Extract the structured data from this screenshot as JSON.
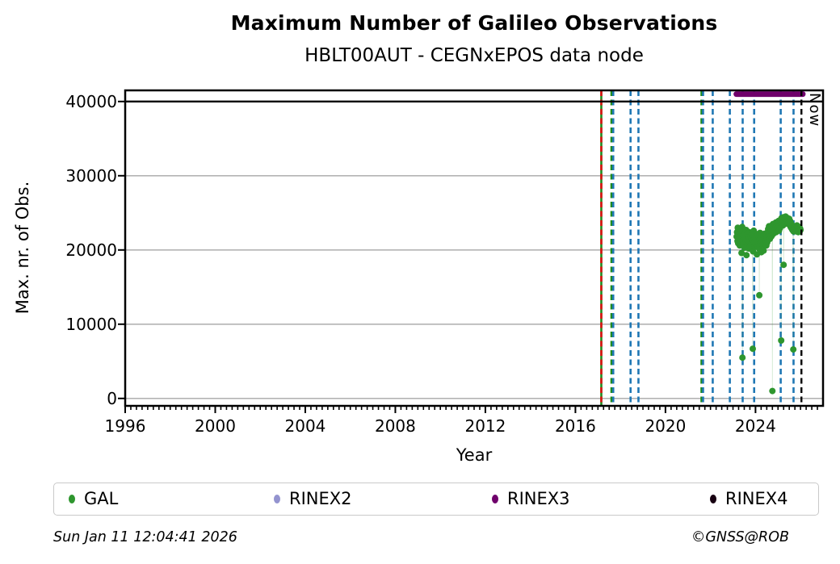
{
  "header": {
    "title": "Maximum Number of Galileo Observations",
    "subtitle": "HBLT00AUT - CEGNxEPOS data node"
  },
  "footer": {
    "timestamp": "Sun Jan 11 12:04:41 2026",
    "copyright": "©GNSS@ROB"
  },
  "chart_data": {
    "type": "scatter",
    "title": "Maximum Number of Galileo Observations",
    "subtitle": "HBLT00AUT - CEGNxEPOS data node",
    "xlabel": "Year",
    "ylabel": "Max. nr. of Obs.",
    "xlim": [
      1996,
      2027
    ],
    "ylim": [
      -1000,
      41500
    ],
    "xticks": [
      1996,
      2000,
      2004,
      2008,
      2012,
      2016,
      2020,
      2024
    ],
    "yticks": [
      0,
      10000,
      20000,
      30000,
      40000
    ],
    "x_minor_tick_step": 0.25,
    "grid": "horizontal-gray",
    "grid_color": "#b3b3b3",
    "legend_position": "bottom",
    "reference_line": {
      "value": 40000,
      "color": "#000000",
      "style": "solid"
    },
    "now_line": {
      "year": 2026.04,
      "label": "Now",
      "color": "#000000",
      "style": "dashed"
    },
    "event_lines": [
      {
        "year": 2017.15,
        "color": "#1e8c1e",
        "style": "solid"
      },
      {
        "year": 2017.15,
        "color": "#dd1111",
        "style": "dashed"
      },
      {
        "year": 2017.6,
        "color": "#1e8c1e",
        "style": "dashed"
      },
      {
        "year": 2017.68,
        "color": "#1f77b4",
        "style": "dashed"
      },
      {
        "year": 2018.45,
        "color": "#1f77b4",
        "style": "dashed"
      },
      {
        "year": 2018.8,
        "color": "#1f77b4",
        "style": "dashed"
      },
      {
        "year": 2021.6,
        "color": "#1e8c1e",
        "style": "dashed"
      },
      {
        "year": 2021.67,
        "color": "#1f77b4",
        "style": "dashed"
      },
      {
        "year": 2022.1,
        "color": "#1f77b4",
        "style": "dashed"
      },
      {
        "year": 2022.86,
        "color": "#1f77b4",
        "style": "dashed"
      },
      {
        "year": 2023.43,
        "color": "#1f77b4",
        "style": "dashed"
      },
      {
        "year": 2023.94,
        "color": "#1f77b4",
        "style": "dashed"
      },
      {
        "year": 2025.12,
        "color": "#1f77b4",
        "style": "dashed"
      },
      {
        "year": 2025.69,
        "color": "#1f77b4",
        "style": "dashed"
      }
    ],
    "series": [
      {
        "name": "GAL",
        "color": "#2e962e",
        "marker": "circle",
        "points": [
          [
            2023.16,
            21800
          ],
          [
            2023.18,
            22400
          ],
          [
            2023.2,
            21200
          ],
          [
            2023.21,
            23000
          ],
          [
            2023.23,
            20900
          ],
          [
            2023.25,
            22100
          ],
          [
            2023.26,
            21500
          ],
          [
            2023.28,
            22800
          ],
          [
            2023.3,
            20600
          ],
          [
            2023.31,
            21900
          ],
          [
            2023.33,
            22300
          ],
          [
            2023.35,
            21100
          ],
          [
            2023.36,
            22600
          ],
          [
            2023.38,
            19600
          ],
          [
            2023.4,
            21700
          ],
          [
            2023.41,
            23100
          ],
          [
            2023.42,
            5500
          ],
          [
            2023.43,
            21300
          ],
          [
            2023.45,
            22000
          ],
          [
            2023.46,
            20800
          ],
          [
            2023.48,
            22500
          ],
          [
            2023.5,
            21600
          ],
          [
            2023.52,
            20300
          ],
          [
            2023.54,
            22200
          ],
          [
            2023.56,
            21000
          ],
          [
            2023.58,
            22700
          ],
          [
            2023.6,
            19300
          ],
          [
            2023.62,
            21400
          ],
          [
            2023.64,
            22100
          ],
          [
            2023.66,
            20700
          ],
          [
            2023.68,
            21800
          ],
          [
            2023.7,
            20200
          ],
          [
            2023.72,
            22400
          ],
          [
            2023.74,
            21100
          ],
          [
            2023.76,
            20500
          ],
          [
            2023.78,
            21900
          ],
          [
            2023.8,
            22300
          ],
          [
            2023.82,
            20900
          ],
          [
            2023.84,
            21500
          ],
          [
            2023.86,
            22000
          ],
          [
            2023.88,
            6700
          ],
          [
            2023.89,
            19800
          ],
          [
            2023.9,
            21300
          ],
          [
            2023.92,
            22600
          ],
          [
            2023.94,
            21000
          ],
          [
            2023.96,
            20400
          ],
          [
            2023.98,
            21700
          ],
          [
            2024.0,
            22200
          ],
          [
            2024.02,
            20800
          ],
          [
            2024.04,
            21500
          ],
          [
            2024.06,
            19400
          ],
          [
            2024.08,
            21100
          ],
          [
            2024.1,
            22000
          ],
          [
            2024.12,
            20500
          ],
          [
            2024.14,
            21800
          ],
          [
            2024.16,
            20200
          ],
          [
            2024.17,
            13900
          ],
          [
            2024.18,
            21400
          ],
          [
            2024.2,
            22300
          ],
          [
            2024.22,
            20900
          ],
          [
            2024.24,
            21600
          ],
          [
            2024.26,
            19700
          ],
          [
            2024.28,
            22100
          ],
          [
            2024.3,
            21200
          ],
          [
            2024.32,
            20700
          ],
          [
            2024.34,
            21900
          ],
          [
            2024.36,
            19900
          ],
          [
            2024.38,
            21500
          ],
          [
            2024.4,
            22200
          ],
          [
            2024.42,
            20800
          ],
          [
            2024.44,
            21300
          ],
          [
            2024.46,
            22000
          ],
          [
            2024.48,
            20600
          ],
          [
            2024.5,
            21700
          ],
          [
            2024.52,
            21000
          ],
          [
            2024.54,
            22400
          ],
          [
            2024.56,
            22800
          ],
          [
            2024.58,
            21900
          ],
          [
            2024.6,
            23200
          ],
          [
            2024.62,
            22300
          ],
          [
            2024.64,
            21500
          ],
          [
            2024.66,
            23000
          ],
          [
            2024.68,
            22500
          ],
          [
            2024.7,
            21800
          ],
          [
            2024.72,
            23300
          ],
          [
            2024.74,
            22000
          ],
          [
            2024.75,
            1000
          ],
          [
            2024.76,
            22700
          ],
          [
            2024.78,
            23500
          ],
          [
            2024.8,
            22200
          ],
          [
            2024.82,
            23100
          ],
          [
            2024.84,
            22600
          ],
          [
            2024.86,
            23400
          ],
          [
            2024.88,
            22900
          ],
          [
            2024.9,
            23700
          ],
          [
            2024.92,
            22400
          ],
          [
            2024.94,
            23200
          ],
          [
            2024.96,
            22800
          ],
          [
            2024.98,
            23600
          ],
          [
            2025.0,
            23000
          ],
          [
            2025.02,
            23900
          ],
          [
            2025.04,
            22600
          ],
          [
            2025.06,
            23300
          ],
          [
            2025.08,
            22900
          ],
          [
            2025.1,
            23800
          ],
          [
            2025.12,
            24100
          ],
          [
            2025.14,
            7800
          ],
          [
            2025.15,
            23400
          ],
          [
            2025.16,
            24300
          ],
          [
            2025.18,
            23700
          ],
          [
            2025.2,
            24000
          ],
          [
            2025.22,
            23300
          ],
          [
            2025.24,
            24400
          ],
          [
            2025.25,
            18000
          ],
          [
            2025.26,
            23900
          ],
          [
            2025.28,
            23500
          ],
          [
            2025.3,
            24200
          ],
          [
            2025.32,
            23800
          ],
          [
            2025.34,
            24500
          ],
          [
            2025.36,
            23600
          ],
          [
            2025.38,
            24100
          ],
          [
            2025.4,
            23900
          ],
          [
            2025.42,
            24300
          ],
          [
            2025.44,
            23500
          ],
          [
            2025.46,
            24000
          ],
          [
            2025.48,
            23700
          ],
          [
            2025.5,
            24200
          ],
          [
            2025.52,
            23400
          ],
          [
            2025.54,
            23900
          ],
          [
            2025.56,
            23100
          ],
          [
            2025.58,
            23600
          ],
          [
            2025.6,
            22900
          ],
          [
            2025.62,
            23300
          ],
          [
            2025.64,
            22700
          ],
          [
            2025.66,
            23100
          ],
          [
            2025.68,
            6600
          ],
          [
            2025.69,
            22500
          ],
          [
            2025.7,
            22900
          ],
          [
            2025.72,
            23200
          ],
          [
            2025.74,
            22600
          ],
          [
            2025.76,
            22800
          ],
          [
            2025.78,
            23100
          ],
          [
            2025.8,
            22500
          ],
          [
            2025.82,
            22900
          ],
          [
            2025.84,
            23300
          ],
          [
            2025.86,
            22600
          ],
          [
            2025.88,
            23000
          ],
          [
            2025.9,
            22400
          ],
          [
            2025.92,
            22800
          ],
          [
            2025.94,
            23100
          ],
          [
            2025.96,
            22500
          ],
          [
            2025.98,
            22900
          ],
          [
            2026.0,
            22700
          ]
        ]
      },
      {
        "name": "RINEX2",
        "color": "#9393cf",
        "marker": "circle",
        "points": []
      },
      {
        "name": "RINEX3",
        "color": "#6f006b",
        "marker": "circle",
        "line": {
          "y": 41000,
          "x_start": 2023.15,
          "x_end": 2026.1,
          "width": 7
        },
        "points": []
      },
      {
        "name": "RINEX4",
        "color": "#170011",
        "marker": "circle",
        "points": []
      }
    ]
  }
}
